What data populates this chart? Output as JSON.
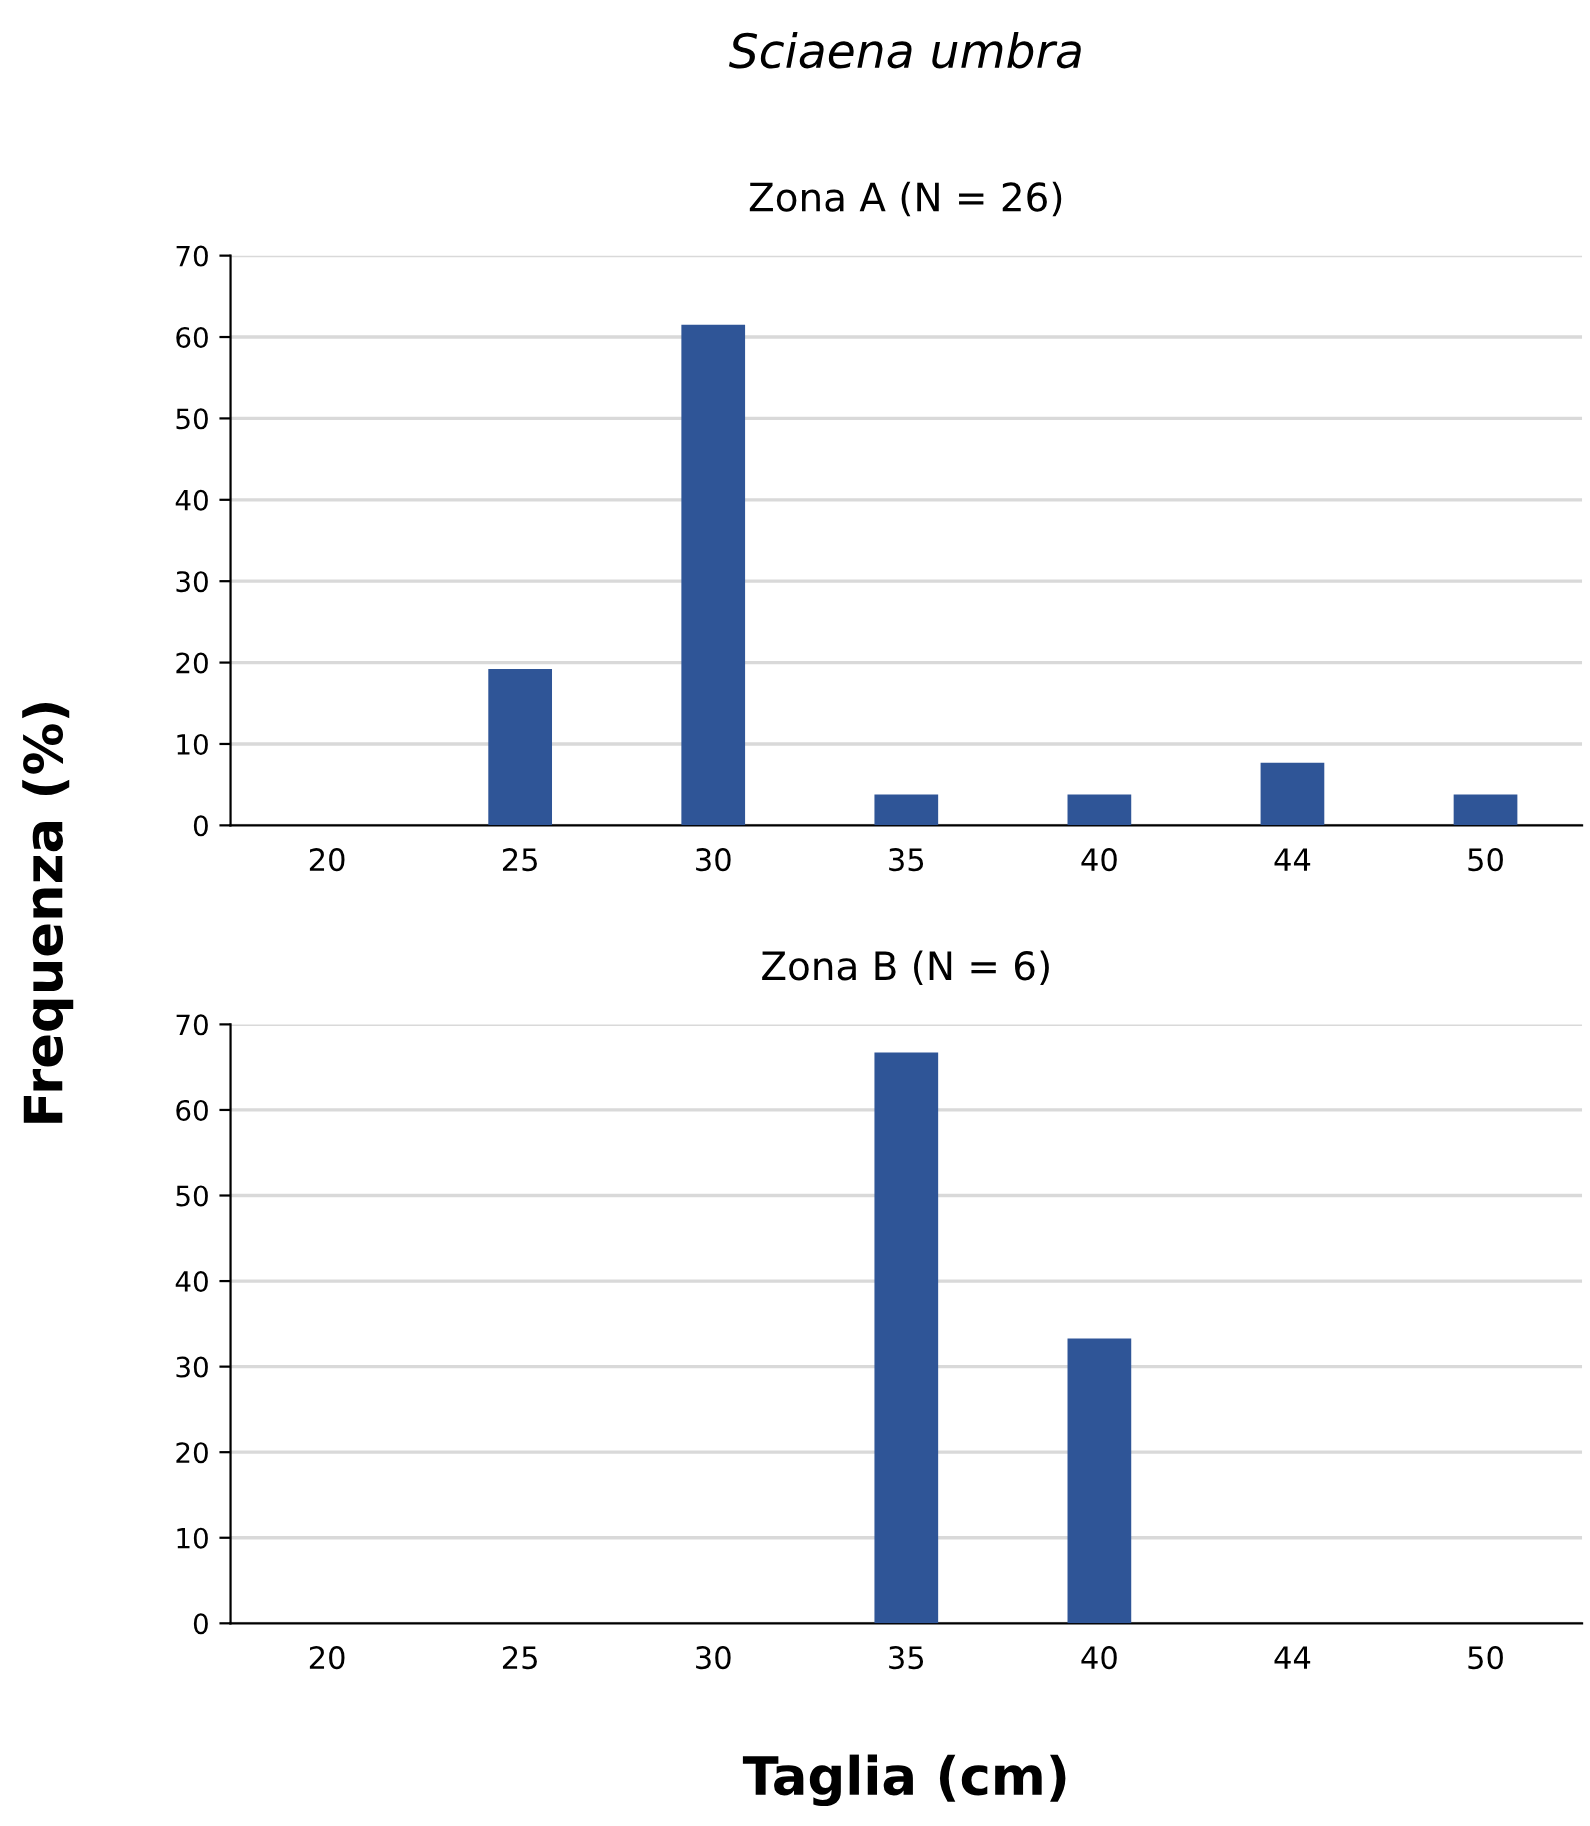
{
  "chart_data": [
    {
      "type": "bar",
      "title": "Sciaena umbra",
      "subtitle": "Zona A (N = 26)",
      "ylabel": "Frequenza (%)",
      "categories": [
        "20",
        "25",
        "30",
        "35",
        "40",
        "44",
        "50"
      ],
      "values": [
        0,
        19.2,
        61.5,
        3.8,
        3.8,
        7.7,
        3.8
      ],
      "color": "#2f5597",
      "ylim": [
        0,
        70
      ],
      "yticks": [
        0,
        10,
        20,
        30,
        40,
        50,
        60,
        70
      ],
      "grid": "y"
    },
    {
      "type": "bar",
      "title": "Zona B (N = 6)",
      "xlabel": "Taglia (cm)",
      "categories": [
        "20",
        "25",
        "30",
        "35",
        "40",
        "44",
        "50"
      ],
      "values": [
        0,
        0,
        0,
        66.7,
        33.3,
        0,
        0
      ],
      "color": "#2f5597",
      "ylim": [
        0,
        70
      ],
      "yticks": [
        0,
        10,
        20,
        30,
        40,
        50,
        60,
        70
      ],
      "grid": "y"
    }
  ]
}
